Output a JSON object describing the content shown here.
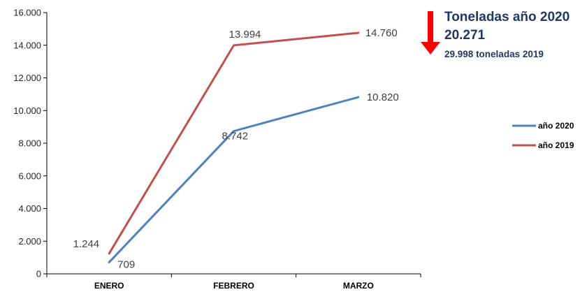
{
  "chart_data": {
    "type": "line",
    "categories": [
      "ENERO",
      "FEBRERO",
      "MARZO"
    ],
    "series": [
      {
        "name": "año 2020",
        "values": [
          709,
          8742,
          10820
        ],
        "labels": [
          "709",
          "8.742",
          "10.820"
        ],
        "color": "#4f81bd"
      },
      {
        "name": "año 2019",
        "values": [
          1244,
          13994,
          14760
        ],
        "labels": [
          "1.244",
          "13.994",
          "14.760"
        ],
        "color": "#c0504d"
      }
    ],
    "ylim": [
      0,
      16000
    ],
    "yticks": [
      0,
      2000,
      4000,
      6000,
      8000,
      10000,
      12000,
      14000,
      16000
    ],
    "ytick_labels": [
      "0",
      "2.000",
      "4.000",
      "6.000",
      "8.000",
      "10.000",
      "12.000",
      "14.000",
      "16.000"
    ],
    "grid": false,
    "legend": "right"
  },
  "annotation": {
    "title": "Toneladas año 2020",
    "value": "20.271",
    "prev_value": "29.998",
    "prev_text": "toneladas 2019",
    "arrow": "down-arrow-icon",
    "arrow_color": "#ff0000",
    "text_color": "#1f3864"
  }
}
